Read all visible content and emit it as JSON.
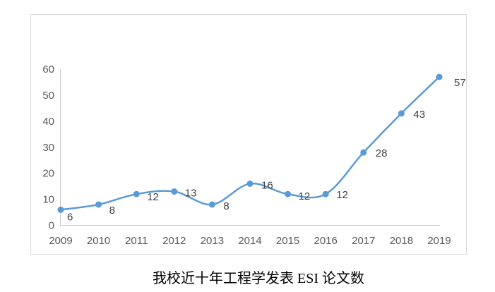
{
  "chart_data": {
    "type": "line",
    "smooth": true,
    "markers": true,
    "title": "我校近十年工程学发表 ESI 论文数",
    "categories": [
      "2009",
      "2010",
      "2011",
      "2012",
      "2013",
      "2014",
      "2015",
      "2016",
      "2017",
      "2018",
      "2019"
    ],
    "values": [
      6,
      8,
      12,
      13,
      8,
      16,
      12,
      12,
      28,
      43,
      57
    ],
    "data_labels": [
      "6",
      "8",
      "12",
      "13",
      "8",
      "16",
      "12",
      "12",
      "28",
      "43",
      "57"
    ],
    "xlabel": "",
    "ylabel": "",
    "ylim": [
      0,
      60
    ],
    "yticks": [
      0,
      10,
      20,
      30,
      40,
      50,
      60
    ],
    "grid": false,
    "legend": "none",
    "colors": {
      "line": "#5B9BD5",
      "marker": "#5B9BD5",
      "axis": "#C9C9C9",
      "frame_border": "#D9D9D9",
      "tick_label": "#595959",
      "data_label": "#404040",
      "title": "#000000",
      "background": "#ffffff"
    }
  }
}
